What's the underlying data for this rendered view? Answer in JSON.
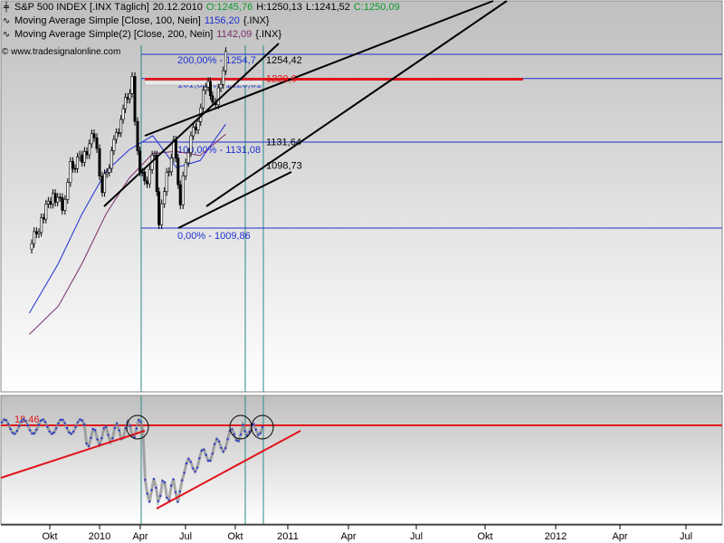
{
  "header": {
    "row1": {
      "name": "S&P 500 INDEX [.INX Täglich]",
      "date": "20.12.2010",
      "open": "O:1245,76",
      "high": "H:1250,13",
      "low": "L:1241,52",
      "close": "C:1250,09"
    },
    "row2": {
      "name": "Moving Average Simple [Close, 100, Nein]",
      "value": "1156,20",
      "suffix": "{.INX}"
    },
    "row3": {
      "name": "Moving Average Simple(2) [Close, 200, Nein]",
      "value": "1142,09",
      "suffix": "{.INX}"
    },
    "copyright": "© www.tradesignalonline.com"
  },
  "colors": {
    "bg_top": "#bfbfbf",
    "bg_bottom": "#ffffff",
    "ma100": "#1f2fd1",
    "ma200": "#7a2a6a",
    "fib": "#1f2fd1",
    "red": "#e0141a",
    "green": "#0a9a2a",
    "candle_up": "#ffffff",
    "candle_down": "#000000",
    "indicator": "#2a3ad0"
  },
  "chart_data": {
    "type": "line",
    "title": "S&P 500 INDEX [.INX Täglich]",
    "x_ticks": [
      "Okt",
      "2010",
      "Apr",
      "Jul",
      "Okt",
      "2011",
      "Apr",
      "Jul",
      "Okt",
      "2012",
      "Apr",
      "Jul"
    ],
    "fib_levels": [
      {
        "label": "200,00% - 1254,7",
        "value": 1254.7
      },
      {
        "label": "161,80% - 1220,61",
        "value": 1220.61
      },
      {
        "label": "100,00% - 1131,08",
        "value": 1131.08
      },
      {
        "label": "0,00% - 1009,86",
        "value": 1009.86
      }
    ],
    "price_labels": [
      {
        "label": "1254,42",
        "value": 1254.42
      },
      {
        "label": "1220,6",
        "value": 1220.6
      },
      {
        "label": "1131,64",
        "value": 1131.64
      },
      {
        "label": "1098,73",
        "value": 1098.73
      }
    ],
    "price_close": [
      {
        "date": "2009-08-01",
        "v": 980
      },
      {
        "date": "2009-09-01",
        "v": 1020
      },
      {
        "date": "2009-10-01",
        "v": 1060
      },
      {
        "date": "2009-10-25",
        "v": 1040
      },
      {
        "date": "2009-11-15",
        "v": 1095
      },
      {
        "date": "2009-12-15",
        "v": 1110
      },
      {
        "date": "2010-01-15",
        "v": 1140
      },
      {
        "date": "2010-02-05",
        "v": 1065
      },
      {
        "date": "2010-03-01",
        "v": 1115
      },
      {
        "date": "2010-03-25",
        "v": 1165
      },
      {
        "date": "2010-04-23",
        "v": 1217
      },
      {
        "date": "2010-05-07",
        "v": 1110
      },
      {
        "date": "2010-05-25",
        "v": 1070
      },
      {
        "date": "2010-06-20",
        "v": 1115
      },
      {
        "date": "2010-07-01",
        "v": 1020
      },
      {
        "date": "2010-07-15",
        "v": 1070
      },
      {
        "date": "2010-08-08",
        "v": 1125
      },
      {
        "date": "2010-08-25",
        "v": 1050
      },
      {
        "date": "2010-09-15",
        "v": 1125
      },
      {
        "date": "2010-10-10",
        "v": 1165
      },
      {
        "date": "2010-11-05",
        "v": 1225
      },
      {
        "date": "2010-11-16",
        "v": 1180
      },
      {
        "date": "2010-12-01",
        "v": 1205
      },
      {
        "date": "2010-12-20",
        "v": 1250
      }
    ],
    "ma100": [
      {
        "date": "2009-08-01",
        "v": 890
      },
      {
        "date": "2009-10-15",
        "v": 960
      },
      {
        "date": "2009-12-15",
        "v": 1030
      },
      {
        "date": "2010-02-15",
        "v": 1090
      },
      {
        "date": "2010-04-15",
        "v": 1120
      },
      {
        "date": "2010-06-15",
        "v": 1140
      },
      {
        "date": "2010-08-15",
        "v": 1095
      },
      {
        "date": "2010-10-15",
        "v": 1105
      },
      {
        "date": "2010-12-20",
        "v": 1156.2
      }
    ],
    "ma200": [
      {
        "date": "2009-08-01",
        "v": 860
      },
      {
        "date": "2009-10-15",
        "v": 900
      },
      {
        "date": "2009-12-15",
        "v": 960
      },
      {
        "date": "2010-02-15",
        "v": 1030
      },
      {
        "date": "2010-04-15",
        "v": 1080
      },
      {
        "date": "2010-06-15",
        "v": 1115
      },
      {
        "date": "2010-08-15",
        "v": 1118
      },
      {
        "date": "2010-10-15",
        "v": 1112
      },
      {
        "date": "2010-12-20",
        "v": 1142.09
      }
    ],
    "indicator_reference": {
      "label": "18,46",
      "value": 18.46
    }
  }
}
